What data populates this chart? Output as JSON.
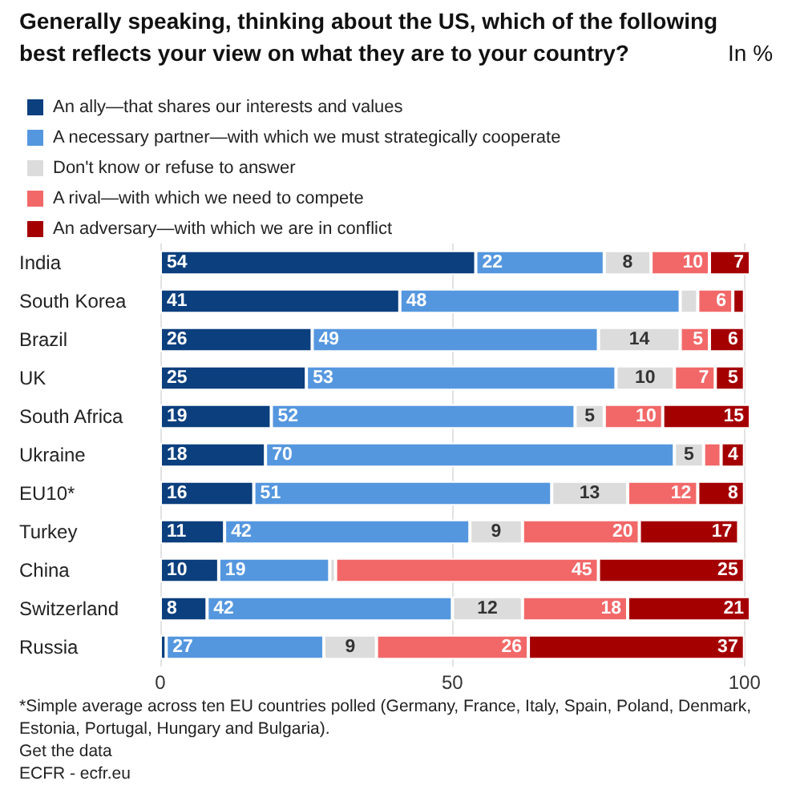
{
  "chart_data": {
    "type": "bar",
    "orientation": "horizontal",
    "stacked": true,
    "title": "Generally speaking, thinking about the US, which of the following best reflects your view on what they are to your country?",
    "subtitle": "In %",
    "categories": [
      "India",
      "South Korea",
      "Brazil",
      "UK",
      "South Africa",
      "Ukraine",
      "EU10*",
      "Turkey",
      "China",
      "Switzerland",
      "Russia"
    ],
    "series": [
      {
        "name": "An ally—that shares our interests and values",
        "color": "#0b3f7e",
        "values": [
          54,
          41,
          26,
          25,
          19,
          18,
          16,
          11,
          10,
          8,
          1
        ],
        "value_labels": [
          "54",
          "41",
          "26",
          "25",
          "19",
          "18",
          "16",
          "11",
          "10",
          "8",
          null
        ]
      },
      {
        "name": "A necessary partner—with which we must strategically cooperate",
        "color": "#5597df",
        "values": [
          22,
          48,
          49,
          53,
          52,
          70,
          51,
          42,
          19,
          42,
          27
        ],
        "value_labels": [
          "22",
          "48",
          "49",
          "53",
          "52",
          "70",
          "51",
          "42",
          "19",
          "42",
          "27"
        ]
      },
      {
        "name": "Don't know or refuse to answer",
        "color": "#dcdcdc",
        "values": [
          8,
          3,
          14,
          10,
          5,
          5,
          13,
          9,
          1,
          12,
          9
        ],
        "value_labels": [
          "8",
          null,
          "14",
          "10",
          "5",
          "5",
          "13",
          "9",
          null,
          "12",
          "9"
        ]
      },
      {
        "name": "A rival—with which we need to compete",
        "color": "#f26868",
        "values": [
          10,
          6,
          5,
          7,
          10,
          3,
          12,
          20,
          45,
          18,
          26
        ],
        "value_labels": [
          "10",
          "6",
          "5",
          "7",
          "10",
          null,
          "12",
          "20",
          "45",
          "18",
          "26"
        ]
      },
      {
        "name": "An adversary—with which we are in conflict",
        "color": "#a50000",
        "values": [
          7,
          2,
          6,
          5,
          15,
          4,
          8,
          17,
          25,
          21,
          37
        ],
        "value_labels": [
          "7",
          null,
          "6",
          "5",
          "15",
          "4",
          "8",
          "17",
          "25",
          "21",
          "37"
        ]
      }
    ],
    "xlim": [
      0,
      101
    ],
    "xticks": [
      0,
      50,
      100
    ],
    "grid": "x",
    "legend": "top left",
    "annotations": [
      "*Simple average across ten EU countries polled (Germany, France, Italy, Spain, Poland, Denmark, Estonia, Portugal, Hungary and Bulgaria).",
      "Get the data",
      "ECFR - ecfr.eu"
    ]
  }
}
